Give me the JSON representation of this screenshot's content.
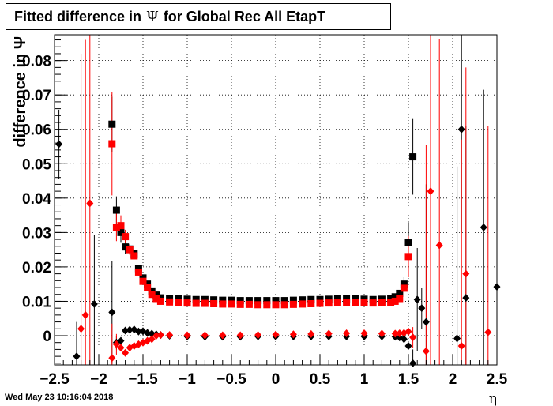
{
  "title": {
    "prefix": "Fitted difference in",
    "symbol": "Ψ",
    "suffix": "for Global Rec All EtapT"
  },
  "timestamp": "Wed May 23 10:16:04 2018",
  "colors": {
    "series_a": "#000000",
    "series_b": "#ff0000",
    "grid": "#000000"
  },
  "chart_data": {
    "type": "scatter",
    "title": "Fitted difference in Ψ for Global Rec All EtapT",
    "xlabel": "η",
    "ylabel": "difference in Ψ",
    "xlim": [
      -2.5,
      2.5
    ],
    "ylim": [
      -0.0085,
      0.0875
    ],
    "grid": true,
    "x_ticks": [
      -2.5,
      -2,
      -1.5,
      -1,
      -0.5,
      0,
      0.5,
      1,
      1.5,
      2,
      2.5
    ],
    "x_tick_labels": [
      "−2.5",
      "−2",
      "−1.5",
      "−1",
      "−0.5",
      "0",
      "0.5",
      "1",
      "1.5",
      "2",
      "2.5"
    ],
    "y_ticks": [
      0,
      0.01,
      0.02,
      0.03,
      0.04,
      0.05,
      0.06,
      0.07,
      0.08
    ],
    "y_tick_labels": [
      "0",
      "0.01",
      "0.02",
      "0.03",
      "0.04",
      "0.05",
      "0.06",
      "0.07",
      "0.08"
    ],
    "series": [
      {
        "name": "",
        "color": "#000000",
        "marker": "square",
        "x": [
          -1.85,
          -1.8,
          -1.75,
          -1.7,
          -1.65,
          -1.6,
          -1.55,
          -1.5,
          -1.45,
          -1.4,
          -1.35,
          -1.3,
          -1.2,
          -1.1,
          -1.0,
          -0.9,
          -0.8,
          -0.7,
          -0.6,
          -0.5,
          -0.4,
          -0.3,
          -0.2,
          -0.1,
          0.0,
          0.1,
          0.2,
          0.3,
          0.4,
          0.5,
          0.6,
          0.7,
          0.8,
          0.9,
          1.0,
          1.1,
          1.2,
          1.3,
          1.35,
          1.4,
          1.45,
          1.5,
          1.55
        ],
        "y": [
          0.0615,
          0.0365,
          0.03,
          0.0258,
          0.0252,
          0.0238,
          0.0195,
          0.0168,
          0.015,
          0.013,
          0.0118,
          0.011,
          0.0108,
          0.0107,
          0.0106,
          0.0105,
          0.0105,
          0.0104,
          0.0103,
          0.0103,
          0.0102,
          0.0102,
          0.0102,
          0.0102,
          0.0102,
          0.0102,
          0.0103,
          0.0104,
          0.0105,
          0.0105,
          0.0106,
          0.0107,
          0.0107,
          0.0107,
          0.0106,
          0.0105,
          0.0106,
          0.0108,
          0.0113,
          0.0123,
          0.015,
          0.027,
          0.052
        ],
        "err": [
          0.008,
          0.004,
          0.003,
          0.002,
          0.0015,
          0.001,
          0.001,
          0.0008,
          0.0006,
          0.0005,
          0.0004,
          0.0003,
          0.0003,
          0.0003,
          0.0003,
          0.0003,
          0.0003,
          0.0003,
          0.0003,
          0.0003,
          0.0003,
          0.0003,
          0.0003,
          0.0003,
          0.0003,
          0.0003,
          0.0003,
          0.0003,
          0.0003,
          0.0003,
          0.0003,
          0.0003,
          0.0003,
          0.0003,
          0.0003,
          0.0003,
          0.0003,
          0.0004,
          0.0008,
          0.001,
          0.002,
          0.006,
          0.011
        ]
      },
      {
        "name": "",
        "color": "#ff0000",
        "marker": "square",
        "x": [
          -1.85,
          -1.8,
          -1.75,
          -1.7,
          -1.65,
          -1.6,
          -1.55,
          -1.5,
          -1.45,
          -1.4,
          -1.35,
          -1.3,
          -1.2,
          -1.1,
          -1.0,
          -0.9,
          -0.8,
          -0.7,
          -0.6,
          -0.5,
          -0.4,
          -0.3,
          -0.2,
          -0.1,
          0.0,
          0.1,
          0.2,
          0.3,
          0.4,
          0.5,
          0.6,
          0.7,
          0.8,
          0.9,
          1.0,
          1.1,
          1.2,
          1.3,
          1.35,
          1.4,
          1.45,
          1.5
        ],
        "y": [
          0.0558,
          0.0315,
          0.032,
          0.0288,
          0.025,
          0.0232,
          0.0185,
          0.0158,
          0.014,
          0.012,
          0.0108,
          0.01,
          0.0098,
          0.0096,
          0.0095,
          0.0094,
          0.0094,
          0.0093,
          0.0092,
          0.0092,
          0.0091,
          0.0091,
          0.009,
          0.009,
          0.009,
          0.009,
          0.0091,
          0.0092,
          0.0093,
          0.0094,
          0.0095,
          0.0096,
          0.0097,
          0.0097,
          0.0096,
          0.0095,
          0.0096,
          0.0097,
          0.01,
          0.0108,
          0.0138,
          0.023
        ],
        "err": [
          0.015,
          0.004,
          0.003,
          0.002,
          0.0015,
          0.001,
          0.001,
          0.0008,
          0.0006,
          0.0005,
          0.0004,
          0.0003,
          0.0003,
          0.0003,
          0.0003,
          0.0003,
          0.0003,
          0.0003,
          0.0003,
          0.0003,
          0.0003,
          0.0003,
          0.0003,
          0.0003,
          0.0003,
          0.0003,
          0.0003,
          0.0003,
          0.0003,
          0.0003,
          0.0003,
          0.0003,
          0.0003,
          0.0003,
          0.0003,
          0.0003,
          0.0003,
          0.0004,
          0.0008,
          0.001,
          0.002,
          0.006
        ]
      },
      {
        "name": "",
        "color": "#000000",
        "marker": "diamond",
        "x": [
          -2.45,
          -2.25,
          -2.05,
          -1.85,
          -1.8,
          -1.75,
          -1.7,
          -1.65,
          -1.6,
          -1.55,
          -1.5,
          -1.45,
          -1.4,
          -1.35,
          -1.3,
          -1.2,
          -1.0,
          -0.8,
          -0.6,
          -0.4,
          -0.2,
          0.0,
          0.2,
          0.4,
          0.6,
          0.8,
          1.0,
          1.2,
          1.35,
          1.4,
          1.45,
          1.5,
          1.55,
          1.6,
          1.65,
          1.7,
          2.05,
          2.1,
          2.15,
          2.35,
          2.5
        ],
        "y": [
          0.0557,
          -0.006,
          0.0092,
          0.0068,
          -0.002,
          -0.0015,
          0.0015,
          0.0017,
          0.0018,
          0.0012,
          0.0013,
          0.0008,
          0.0006,
          0.0004,
          0.0002,
          0.0,
          -0.0002,
          -0.0003,
          -0.0003,
          -0.0003,
          -0.0002,
          -0.0002,
          -0.0002,
          -0.0002,
          -0.0002,
          -0.0002,
          -0.0002,
          -0.0002,
          -0.0003,
          -0.0005,
          -0.001,
          -0.003,
          -0.008,
          0.0105,
          0.008,
          0.004,
          -0.0008,
          0.06,
          0.011,
          0.0315,
          0.0142
        ],
        "err": [
          0.01,
          0.01,
          0.02,
          0.015,
          0.002,
          0.001,
          0.0008,
          0.0006,
          0.0005,
          0.0004,
          0.0003,
          0.0003,
          0.0002,
          0.0002,
          0.0002,
          0.0002,
          0.0002,
          0.0002,
          0.0002,
          0.0002,
          0.0002,
          0.0002,
          0.0002,
          0.0002,
          0.0002,
          0.0002,
          0.0002,
          0.0002,
          0.0002,
          0.0003,
          0.0005,
          0.001,
          0.004,
          0.015,
          0.006,
          0.04,
          0.05,
          0.03,
          0.05,
          0.04,
          0.05
        ]
      },
      {
        "name": "",
        "color": "#ff0000",
        "marker": "diamond",
        "x": [
          -2.2,
          -2.15,
          -2.1,
          -1.85,
          -1.8,
          -1.75,
          -1.7,
          -1.65,
          -1.6,
          -1.55,
          -1.5,
          -1.45,
          -1.4,
          -1.35,
          -1.3,
          -1.2,
          -1.0,
          -0.8,
          -0.6,
          -0.4,
          -0.2,
          0.0,
          0.2,
          0.4,
          0.6,
          0.8,
          1.0,
          1.2,
          1.35,
          1.4,
          1.45,
          1.5,
          1.55,
          1.7,
          1.75,
          1.85,
          2.1,
          2.15,
          2.4
        ],
        "y": [
          0.002,
          0.006,
          0.0385,
          -0.0065,
          -0.0025,
          -0.0035,
          -0.005,
          -0.0035,
          -0.003,
          -0.0025,
          -0.002,
          -0.0015,
          -0.001,
          0.0,
          0.0002,
          0.0002,
          0.0001,
          0.0001,
          0.0001,
          0.0001,
          0.0002,
          0.0003,
          0.0004,
          0.0005,
          0.0006,
          0.0007,
          0.0007,
          0.0006,
          0.0006,
          0.0007,
          0.0008,
          0.0012,
          -0.0005,
          -0.0045,
          0.042,
          0.0263,
          -0.003,
          0.018,
          0.001
        ],
        "err": [
          0.08,
          0.08,
          0.08,
          0.01,
          0.003,
          0.001,
          0.0008,
          0.0006,
          0.0005,
          0.0004,
          0.0003,
          0.0003,
          0.0002,
          0.0002,
          0.0002,
          0.0002,
          0.0002,
          0.0002,
          0.0002,
          0.0002,
          0.0002,
          0.0002,
          0.0002,
          0.0002,
          0.0002,
          0.0002,
          0.0002,
          0.0002,
          0.0002,
          0.0003,
          0.0005,
          0.0008,
          0.003,
          0.06,
          0.06,
          0.06,
          0.06,
          0.06,
          0.06
        ]
      }
    ]
  }
}
